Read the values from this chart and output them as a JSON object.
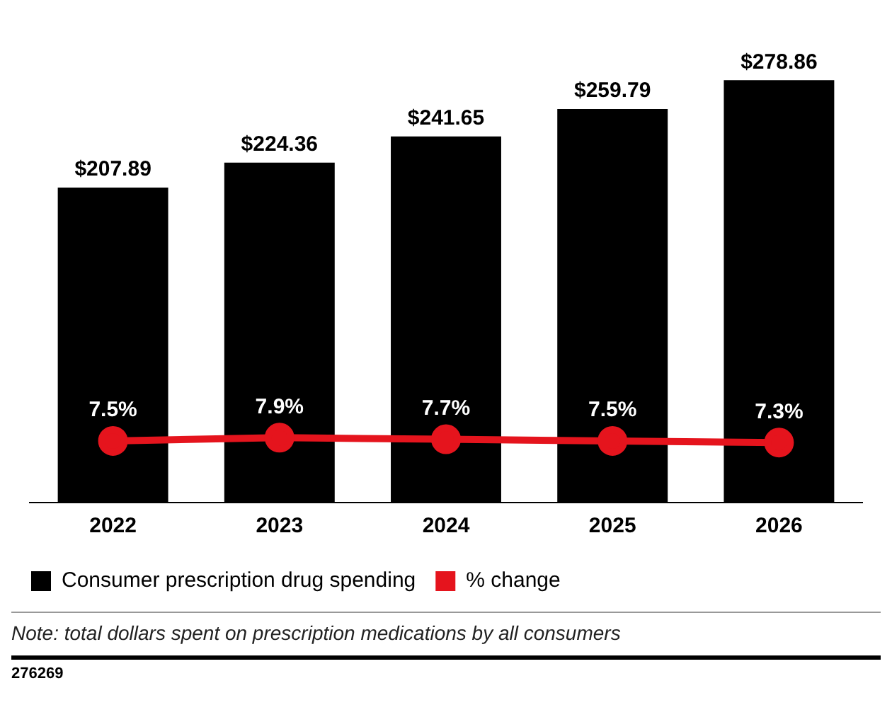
{
  "chart_data": {
    "type": "bar",
    "categories": [
      "2022",
      "2023",
      "2024",
      "2025",
      "2026"
    ],
    "series": [
      {
        "name": "Consumer prescription drug spending",
        "color": "#000000",
        "values": [
          207.89,
          224.36,
          241.65,
          259.79,
          278.86
        ],
        "value_labels": [
          "$207.89",
          "$224.36",
          "$241.65",
          "$259.79",
          "$278.86"
        ]
      },
      {
        "name": "% change",
        "type": "line",
        "axis": "y2",
        "color": "#e5141d",
        "marker": "circle",
        "values": [
          7.5,
          7.9,
          7.7,
          7.5,
          7.3
        ],
        "value_labels": [
          "7.5%",
          "7.9%",
          "7.7%",
          "7.5%",
          "7.3%"
        ]
      }
    ],
    "tick_labels": "x",
    "grid": false,
    "legend": "bottom",
    "annotations": [
      "Note: total dollars spent on prescription medications by all consumers",
      "276269"
    ]
  }
}
